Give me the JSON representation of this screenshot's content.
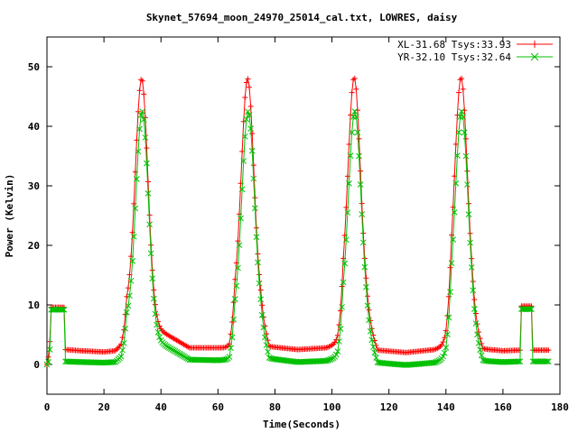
{
  "chart_data": {
    "type": "line",
    "title": "Skynet_57694_moon_24970_25014_cal.txt, LOWRES, daisy",
    "xlabel": "Time(Seconds)",
    "ylabel": "Power (Kelvin)",
    "xlim": [
      0,
      180
    ],
    "ylim": [
      -5,
      55
    ],
    "xticks": [
      "0",
      "20",
      "40",
      "60",
      "80",
      "100",
      "120",
      "140",
      "160",
      "180"
    ],
    "yticks": [
      "0",
      "10",
      "20",
      "30",
      "40",
      "50"
    ],
    "grid": false,
    "legend_position": "top-right",
    "series": [
      {
        "name": "XL-31.68 Tsys:33.93",
        "color": "#ff0000",
        "marker": "plus",
        "baseline": [
          [
            0,
            0
          ],
          [
            0.6,
            1.5
          ],
          [
            1.2,
            5
          ],
          [
            1.5,
            9.6
          ],
          [
            6,
            9.6
          ],
          [
            6.1,
            2.5
          ],
          [
            12,
            2.3
          ],
          [
            20,
            2.1
          ],
          [
            24,
            2.3
          ],
          [
            26,
            3.2
          ],
          [
            27,
            5
          ],
          [
            28,
            9
          ],
          [
            50,
            2.8
          ],
          [
            60,
            2.8
          ],
          [
            64,
            2.8
          ],
          [
            65,
            5
          ],
          [
            66,
            9
          ],
          [
            75,
            8
          ],
          [
            78,
            3
          ],
          [
            88,
            2.5
          ],
          [
            98,
            2.8
          ],
          [
            102,
            3.5
          ],
          [
            103,
            5
          ],
          [
            104,
            9
          ],
          [
            112,
            8
          ],
          [
            116,
            2.4
          ],
          [
            126,
            2.0
          ],
          [
            136,
            2.5
          ],
          [
            140,
            3.2
          ],
          [
            141,
            5
          ],
          [
            142,
            9
          ],
          [
            149,
            8
          ],
          [
            153,
            2.6
          ],
          [
            160,
            2.3
          ],
          [
            166,
            2.4
          ],
          [
            166.1,
            9.8
          ],
          [
            170,
            9.8
          ],
          [
            170.1,
            2.4
          ],
          [
            176,
            2.4
          ]
        ],
        "peaks": [
          {
            "center": 33.2,
            "peak": 48
          },
          {
            "center": 70.4,
            "peak": 48
          },
          {
            "center": 107.8,
            "peak": 48.2
          },
          {
            "center": 145.3,
            "peak": 48.2
          }
        ]
      },
      {
        "name": "YR-32.10 Tsys:32.64",
        "color": "#00c000",
        "marker": "cross",
        "baseline": [
          [
            0,
            0
          ],
          [
            0.6,
            0.5
          ],
          [
            1.2,
            3.5
          ],
          [
            1.5,
            9.2
          ],
          [
            6,
            9.2
          ],
          [
            6.1,
            0.5
          ],
          [
            12,
            0.4
          ],
          [
            20,
            0.3
          ],
          [
            24,
            0.4
          ],
          [
            26,
            1.2
          ],
          [
            27,
            3
          ],
          [
            28,
            7
          ],
          [
            50,
            0.8
          ],
          [
            60,
            0.7
          ],
          [
            64,
            0.8
          ],
          [
            65,
            3
          ],
          [
            66,
            7
          ],
          [
            75,
            6
          ],
          [
            78,
            1
          ],
          [
            88,
            0.4
          ],
          [
            98,
            0.6
          ],
          [
            102,
            1.2
          ],
          [
            103,
            3
          ],
          [
            104,
            7
          ],
          [
            112,
            6
          ],
          [
            116,
            0.3
          ],
          [
            126,
            -0.1
          ],
          [
            136,
            0.3
          ],
          [
            140,
            1
          ],
          [
            141,
            3
          ],
          [
            142,
            7
          ],
          [
            149,
            6
          ],
          [
            153,
            0.6
          ],
          [
            160,
            0.4
          ],
          [
            166,
            0.5
          ],
          [
            166.1,
            9.3
          ],
          [
            170,
            9.3
          ],
          [
            170.1,
            0.5
          ],
          [
            176,
            0.5
          ]
        ],
        "peaks": [
          {
            "center": 33.4,
            "peak": 42.5
          },
          {
            "center": 70.6,
            "peak": 42.5
          },
          {
            "center": 108.0,
            "peak": 42.5
          },
          {
            "center": 145.5,
            "peak": 42.5
          }
        ]
      }
    ]
  }
}
